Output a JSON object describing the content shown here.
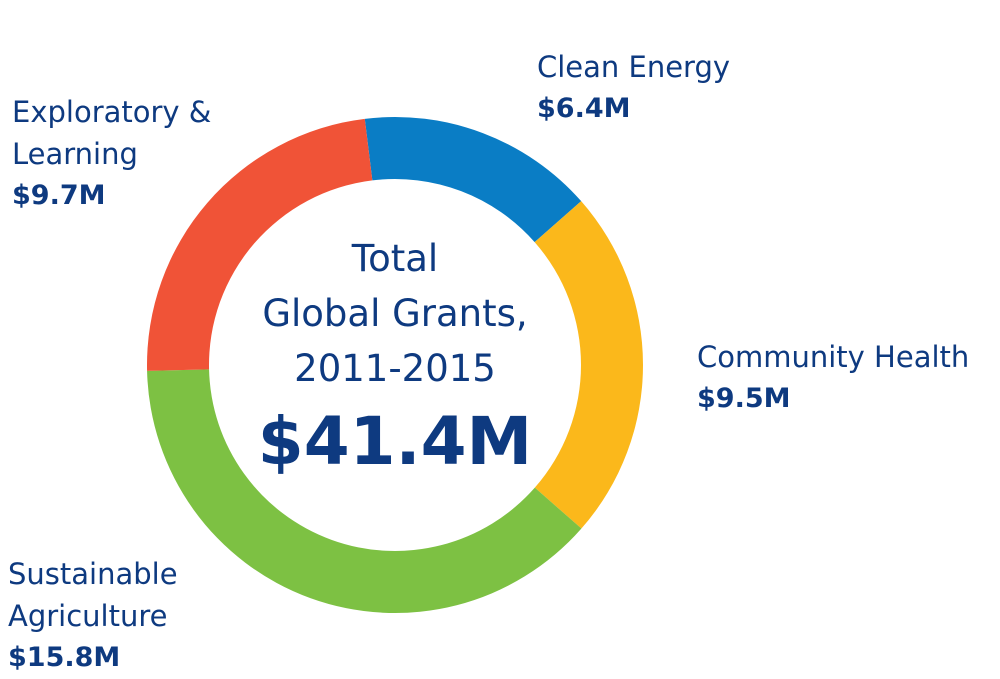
{
  "chart_data": {
    "type": "donut",
    "categories": [
      "Clean Energy",
      "Community Health",
      "Sustainable Agriculture",
      "Exploratory & Learning"
    ],
    "values": [
      6.4,
      9.5,
      15.8,
      9.7
    ],
    "value_labels": [
      "$6.4M",
      "$9.5M",
      "$15.8M",
      "$9.7M"
    ],
    "colors": [
      "#0a7dc5",
      "#fbb81b",
      "#7dc143",
      "#f05337"
    ],
    "center_lines": [
      "Total",
      "Global Grants,",
      "2011-2015"
    ],
    "total": 41.4,
    "total_label": "$41.4M"
  }
}
